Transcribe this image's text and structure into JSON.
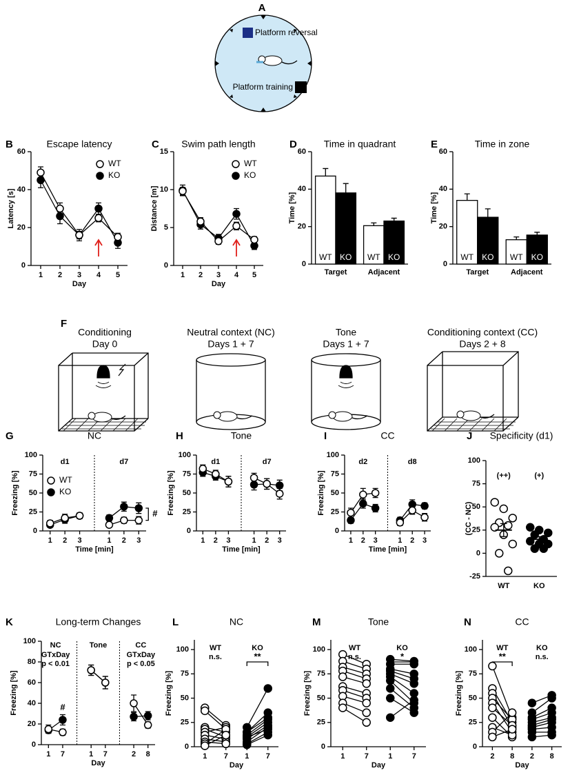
{
  "figure_a": {
    "panel": "A",
    "labels": [
      "Platform reversal",
      "Platform training"
    ]
  },
  "figure_f": {
    "panel": "F",
    "contexts": [
      {
        "title": "Conditioning",
        "days": "Day 0"
      },
      {
        "title": "Neutral context (NC)",
        "days": "Days 1 + 7"
      },
      {
        "title": "Tone",
        "days": "Days 1 + 7"
      },
      {
        "title": "Conditioning context (CC)",
        "days": "Days 2 + 8"
      }
    ]
  },
  "chart_data": [
    {
      "type": "line",
      "panel": "B",
      "title": "Escape latency",
      "x_label": "Day",
      "y_label": "Latency [s]",
      "x": [
        1,
        2,
        3,
        4,
        5
      ],
      "xlim": [
        0.5,
        5.5
      ],
      "xticks": [
        1,
        2,
        3,
        4,
        5
      ],
      "ylim": [
        0,
        60
      ],
      "yticks": [
        0,
        20,
        40,
        60
      ],
      "legend": "upper right",
      "series": [
        {
          "name": "WT",
          "color": "#ffffff",
          "values": [
            49,
            30,
            16,
            25,
            15
          ],
          "errors": [
            3,
            3,
            2,
            2,
            2
          ]
        },
        {
          "name": "KO",
          "color": "#000000",
          "values": [
            45,
            26,
            16,
            30,
            12
          ],
          "errors": [
            4,
            4,
            3,
            3,
            3
          ]
        }
      ]
    },
    {
      "type": "line",
      "panel": "C",
      "title": "Swim path length",
      "x_label": "Day",
      "y_label": "Distance [m]",
      "x": [
        1,
        2,
        3,
        4,
        5
      ],
      "xlim": [
        0.5,
        5.5
      ],
      "xticks": [
        1,
        2,
        3,
        4,
        5
      ],
      "ylim": [
        0,
        15
      ],
      "yticks": [
        0,
        5,
        10,
        15
      ],
      "legend": "upper right",
      "series": [
        {
          "name": "WT",
          "color": "#ffffff",
          "values": [
            9.8,
            5.8,
            3.2,
            5.2,
            3.4
          ],
          "errors": [
            0.5,
            0.5,
            0.4,
            0.5,
            0.4
          ]
        },
        {
          "name": "KO",
          "color": "#000000",
          "values": [
            9.9,
            5.4,
            3.6,
            6.8,
            2.6
          ],
          "errors": [
            0.7,
            0.6,
            0.5,
            0.7,
            0.5
          ]
        }
      ]
    },
    {
      "type": "bar",
      "panel": "D",
      "title": "Time in quadrant",
      "y_label": "Time [%]",
      "categories": [
        "Target",
        "Adjacent"
      ],
      "ylim": [
        0,
        60
      ],
      "yticks": [
        0,
        20,
        40,
        60
      ],
      "series": [
        {
          "name": "WT",
          "color": "#ffffff",
          "values": [
            47,
            20.5
          ],
          "errors": [
            4,
            1.5
          ]
        },
        {
          "name": "KO",
          "color": "#000000",
          "values": [
            38,
            23
          ],
          "errors": [
            5,
            1.5
          ]
        }
      ]
    },
    {
      "type": "bar",
      "panel": "E",
      "title": "Time in zone",
      "y_label": "Time [%]",
      "categories": [
        "Target",
        "Adjacent"
      ],
      "ylim": [
        0,
        60
      ],
      "yticks": [
        0,
        20,
        40,
        60
      ],
      "series": [
        {
          "name": "WT",
          "color": "#ffffff",
          "values": [
            34,
            13
          ],
          "errors": [
            3.5,
            1.5
          ]
        },
        {
          "name": "KO",
          "color": "#000000",
          "values": [
            25,
            15.5
          ],
          "errors": [
            4.5,
            1.5
          ]
        }
      ]
    },
    {
      "type": "line",
      "panel": "G",
      "title": "NC",
      "x_label": "Time [min]",
      "y_label": "Freezing [%]",
      "categories": [
        "1",
        "2",
        "3",
        null,
        "1",
        "2",
        "3"
      ],
      "sections": [
        {
          "label": "d1"
        },
        {
          "label": "d7"
        }
      ],
      "ylim": [
        0,
        100
      ],
      "yticks": [
        0,
        25,
        50,
        75,
        100
      ],
      "legend": "center left",
      "annotation": "#",
      "series": [
        {
          "name": "WT",
          "color": "#ffffff",
          "values": [
            10,
            17,
            20,
            null,
            8,
            14,
            14
          ],
          "errors": [
            4,
            5,
            4,
            null,
            3,
            4,
            5
          ]
        },
        {
          "name": "KO",
          "color": "#000000",
          "values": [
            8,
            15,
            20,
            null,
            17,
            32,
            30
          ],
          "errors": [
            3,
            5,
            4,
            null,
            4,
            6,
            7
          ]
        }
      ]
    },
    {
      "type": "line",
      "panel": "H",
      "title": "Tone",
      "x_label": "Time [min]",
      "y_label": "Freezing [%]",
      "categories": [
        "1",
        "2",
        "3",
        null,
        "1",
        "2",
        "3"
      ],
      "sections": [
        {
          "label": "d1"
        },
        {
          "label": "d7"
        }
      ],
      "ylim": [
        0,
        100
      ],
      "yticks": [
        0,
        25,
        50,
        75,
        100
      ],
      "series": [
        {
          "name": "WT",
          "color": "#ffffff",
          "values": [
            82,
            75,
            65,
            null,
            70,
            62,
            49
          ],
          "errors": [
            5,
            5,
            7,
            null,
            6,
            7,
            7
          ]
        },
        {
          "name": "KO",
          "color": "#000000",
          "values": [
            77,
            72,
            65,
            null,
            61,
            62,
            60
          ],
          "errors": [
            5,
            5,
            7,
            null,
            7,
            7,
            7
          ]
        }
      ]
    },
    {
      "type": "line",
      "panel": "I",
      "title": "CC",
      "x_label": "Time [min]",
      "y_label": "Freezing [%]",
      "categories": [
        "1",
        "2",
        "3",
        null,
        "1",
        "2",
        "3"
      ],
      "sections": [
        {
          "label": "d2"
        },
        {
          "label": "d8"
        }
      ],
      "ylim": [
        0,
        100
      ],
      "yticks": [
        0,
        25,
        50,
        75,
        100
      ],
      "series": [
        {
          "name": "WT",
          "color": "#ffffff",
          "values": [
            24,
            48,
            50,
            null,
            11,
            27,
            18
          ],
          "errors": [
            6,
            8,
            6,
            null,
            4,
            5,
            5
          ]
        },
        {
          "name": "KO",
          "color": "#000000",
          "values": [
            14,
            36,
            30,
            null,
            14,
            35,
            33
          ],
          "errors": [
            4,
            6,
            5,
            null,
            4,
            6,
            4
          ]
        }
      ]
    },
    {
      "type": "strip",
      "panel": "J",
      "title": "Specificity (d1)",
      "y_label": "(CC - NC)",
      "categories": [
        "WT",
        "KO"
      ],
      "ylim": [
        -25,
        100
      ],
      "yticks": [
        -25,
        0,
        25,
        50,
        75,
        100
      ],
      "series": [
        {
          "color": "#ffffff",
          "annotation": "(++)",
          "values": [
            55,
            48,
            38,
            33,
            30,
            28,
            20,
            10,
            0,
            -19
          ],
          "mean": 25,
          "error": 7
        },
        {
          "color": "#000000",
          "annotation": "(+)",
          "values": [
            28,
            25,
            22,
            20,
            15,
            13,
            10,
            10,
            5,
            5
          ],
          "mean": 15,
          "error": 3
        }
      ]
    },
    {
      "type": "line",
      "panel": "K",
      "title": "Long-term Changes",
      "x_label": "Day",
      "y_label": "Freezing [%]",
      "categories": [
        "1",
        "7",
        null,
        "1",
        "7",
        null,
        "2",
        "8"
      ],
      "sections": [
        {
          "label": "NC",
          "note": [
            "GTxDay",
            "p < 0.01"
          ]
        },
        {
          "label": "Tone"
        },
        {
          "label": "CC",
          "note": [
            "GTxDay",
            "p < 0.05"
          ]
        }
      ],
      "ylim": [
        0,
        100
      ],
      "yticks": [
        0,
        20,
        40,
        60,
        80,
        100
      ],
      "annotation": "#",
      "series": [
        {
          "name": "WT",
          "color": "#ffffff",
          "values": [
            15,
            12,
            null,
            72,
            60,
            null,
            40,
            19
          ],
          "errors": [
            4,
            3,
            null,
            5,
            6,
            null,
            8,
            3
          ]
        },
        {
          "name": "KO",
          "color": "#000000",
          "values": [
            14,
            24,
            null,
            72,
            60,
            null,
            27,
            28
          ],
          "errors": [
            3,
            5,
            null,
            5,
            6,
            null,
            4,
            4
          ]
        }
      ]
    },
    {
      "type": "paired",
      "panel": "L",
      "title": "NC",
      "x_label": "Day",
      "y_label": "Freezing [%]",
      "categories": [
        "1",
        "7",
        "1",
        "7"
      ],
      "ylim": [
        0,
        110
      ],
      "yticks": [
        0,
        25,
        50,
        75,
        100
      ],
      "groups": [
        {
          "name": "WT",
          "color": "#ffffff",
          "stats": "n.s.",
          "bracket": false,
          "pairs": [
            [
              40,
              22
            ],
            [
              37,
              18
            ],
            [
              20,
              15
            ],
            [
              18,
              10
            ],
            [
              15,
              20
            ],
            [
              12,
              8
            ],
            [
              8,
              5
            ],
            [
              5,
              3
            ],
            [
              3,
              18
            ],
            [
              1,
              12
            ]
          ]
        },
        {
          "name": "KO",
          "color": "#000000",
          "stats": "**",
          "bracket": true,
          "pairs": [
            [
              20,
              60
            ],
            [
              15,
              35
            ],
            [
              12,
              28
            ],
            [
              10,
              25
            ],
            [
              8,
              22
            ],
            [
              5,
              20
            ],
            [
              3,
              15
            ],
            [
              2,
              12
            ],
            [
              15,
              30
            ],
            [
              10,
              18
            ]
          ]
        }
      ]
    },
    {
      "type": "paired",
      "panel": "M",
      "title": "Tone",
      "x_label": "Day",
      "y_label": "Freezing [%]",
      "categories": [
        "1",
        "7",
        "1",
        "7"
      ],
      "ylim": [
        0,
        110
      ],
      "yticks": [
        0,
        25,
        50,
        75,
        100
      ],
      "groups": [
        {
          "name": "WT",
          "color": "#ffffff",
          "stats": "n.s.",
          "bracket": false,
          "pairs": [
            [
              95,
              85
            ],
            [
              88,
              80
            ],
            [
              82,
              75
            ],
            [
              78,
              70
            ],
            [
              72,
              65
            ],
            [
              62,
              55
            ],
            [
              58,
              50
            ],
            [
              52,
              45
            ],
            [
              45,
              35
            ],
            [
              40,
              25
            ]
          ]
        },
        {
          "name": "KO",
          "color": "#000000",
          "stats": "*",
          "bracket": true,
          "pairs": [
            [
              90,
              88
            ],
            [
              85,
              85
            ],
            [
              80,
              75
            ],
            [
              78,
              70
            ],
            [
              75,
              65
            ],
            [
              72,
              55
            ],
            [
              68,
              45
            ],
            [
              60,
              40
            ],
            [
              50,
              35
            ],
            [
              30,
              48
            ]
          ]
        }
      ]
    },
    {
      "type": "paired",
      "panel": "N",
      "title": "CC",
      "x_label": "Day",
      "y_label": "Freezing [%]",
      "categories": [
        "2",
        "8",
        "2",
        "8"
      ],
      "ylim": [
        0,
        110
      ],
      "yticks": [
        0,
        25,
        50,
        75,
        100
      ],
      "groups": [
        {
          "name": "WT",
          "color": "#ffffff",
          "stats": "**",
          "bracket": true,
          "pairs": [
            [
              83,
              30
            ],
            [
              60,
              25
            ],
            [
              55,
              20
            ],
            [
              50,
              28
            ],
            [
              45,
              15
            ],
            [
              40,
              22
            ],
            [
              30,
              10
            ],
            [
              20,
              12
            ],
            [
              15,
              35
            ],
            [
              10,
              18
            ]
          ]
        },
        {
          "name": "KO",
          "color": "#000000",
          "stats": "n.s.",
          "bracket": false,
          "pairs": [
            [
              35,
              50
            ],
            [
              30,
              40
            ],
            [
              28,
              35
            ],
            [
              25,
              30
            ],
            [
              22,
              28
            ],
            [
              20,
              25
            ],
            [
              18,
              20
            ],
            [
              15,
              15
            ],
            [
              10,
              12
            ],
            [
              45,
              53
            ]
          ]
        }
      ]
    }
  ]
}
